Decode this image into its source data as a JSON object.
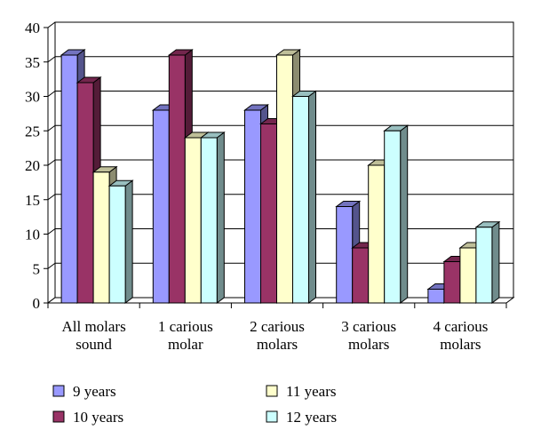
{
  "chart_data": {
    "type": "bar",
    "title": "",
    "xlabel": "",
    "ylabel": "",
    "ylim": [
      0,
      40
    ],
    "yticks": [
      0,
      5,
      10,
      15,
      20,
      25,
      30,
      35,
      40
    ],
    "grid": true,
    "legend_position": "bottom",
    "categories": [
      [
        "All molars",
        "sound"
      ],
      [
        "1 carious",
        "molar"
      ],
      [
        "2 carious",
        "molars"
      ],
      [
        "3 carious",
        "molars"
      ],
      [
        "4 carious",
        "molars"
      ]
    ],
    "series": [
      {
        "name": "9 years",
        "color": "#9999ff",
        "values": [
          36,
          28,
          28,
          14,
          2
        ]
      },
      {
        "name": "10 years",
        "color": "#993366",
        "values": [
          32,
          36,
          26,
          8,
          6
        ]
      },
      {
        "name": "11 years",
        "color": "#ffffcc",
        "values": [
          19,
          24,
          36,
          20,
          8
        ]
      },
      {
        "name": "12 years",
        "color": "#ccffff",
        "values": [
          17,
          24,
          30,
          25,
          11
        ]
      }
    ]
  }
}
